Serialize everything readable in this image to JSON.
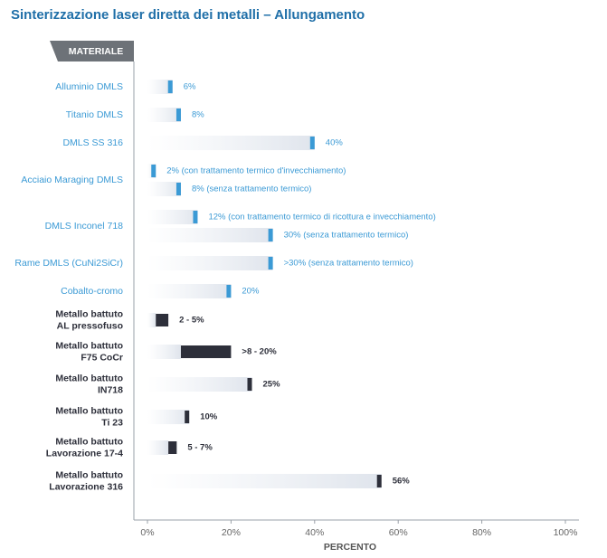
{
  "chart_data": {
    "type": "bar",
    "title": "Sinterizzazione laser diretta dei metalli – Allungamento",
    "category_header": "MATERIALE",
    "x_label": "PERCENTO",
    "xlim": [
      0,
      100
    ],
    "xticks": [
      {
        "value": 0,
        "label": "0%"
      },
      {
        "value": 20,
        "label": "20%"
      },
      {
        "value": 40,
        "label": "40%"
      },
      {
        "value": 60,
        "label": "60%"
      },
      {
        "value": 80,
        "label": "80%"
      },
      {
        "value": 100,
        "label": "100%"
      }
    ],
    "groups": [
      {
        "name": [
          "Alluminio DMLS"
        ],
        "color": "#3b9ad5",
        "values": [
          6
        ],
        "value_labels": [
          "6%"
        ]
      },
      {
        "name": [
          "Titanio DMLS"
        ],
        "color": "#3b9ad5",
        "values": [
          8
        ],
        "value_labels": [
          "8%"
        ]
      },
      {
        "name": [
          "DMLS SS 316"
        ],
        "color": "#3b9ad5",
        "values": [
          40
        ],
        "value_labels": [
          "40%"
        ]
      },
      {
        "name": [
          "Acciaio Maraging DMLS"
        ],
        "color": "#3b9ad5",
        "values": [
          2,
          8
        ],
        "value_labels": [
          "2% (con trattamento termico d'invecchiamento)",
          "8% (senza trattamento termico)"
        ]
      },
      {
        "name": [
          "DMLS Inconel 718"
        ],
        "color": "#3b9ad5",
        "values": [
          12,
          30
        ],
        "value_labels": [
          "12% (con trattamento termico di ricottura e invecchiamento)",
          "30% (senza trattamento termico)"
        ]
      },
      {
        "name": [
          "Rame DMLS (CuNi2SiCr)"
        ],
        "color": "#3b9ad5",
        "values": [
          30
        ],
        "value_labels": [
          ">30% (senza trattamento termico)"
        ]
      },
      {
        "name": [
          "Cobalto-cromo"
        ],
        "color": "#3b9ad5",
        "values": [
          20
        ],
        "value_labels": [
          "20%"
        ]
      },
      {
        "name": [
          "Metallo battuto",
          "AL pressofuso"
        ],
        "color": "#2d2f3a",
        "values": [
          [
            2,
            5
          ]
        ],
        "value_labels": [
          "2 - 5%"
        ]
      },
      {
        "name": [
          "Metallo battuto",
          "F75 CoCr"
        ],
        "color": "#2d2f3a",
        "values": [
          [
            8,
            20
          ]
        ],
        "value_labels": [
          ">8 - 20%"
        ]
      },
      {
        "name": [
          "Metallo battuto",
          "IN718"
        ],
        "color": "#2d2f3a",
        "values": [
          25
        ],
        "value_labels": [
          "25%"
        ]
      },
      {
        "name": [
          "Metallo battuto",
          "Ti 23"
        ],
        "color": "#2d2f3a",
        "values": [
          10
        ],
        "value_labels": [
          "10%"
        ]
      },
      {
        "name": [
          "Metallo battuto",
          "Lavorazione 17-4"
        ],
        "color": "#2d2f3a",
        "values": [
          [
            5,
            7
          ]
        ],
        "value_labels": [
          "5 - 7%"
        ]
      },
      {
        "name": [
          "Metallo battuto",
          "Lavorazione 316"
        ],
        "color": "#2d2f3a",
        "values": [
          56
        ],
        "value_labels": [
          "56%"
        ]
      }
    ]
  }
}
